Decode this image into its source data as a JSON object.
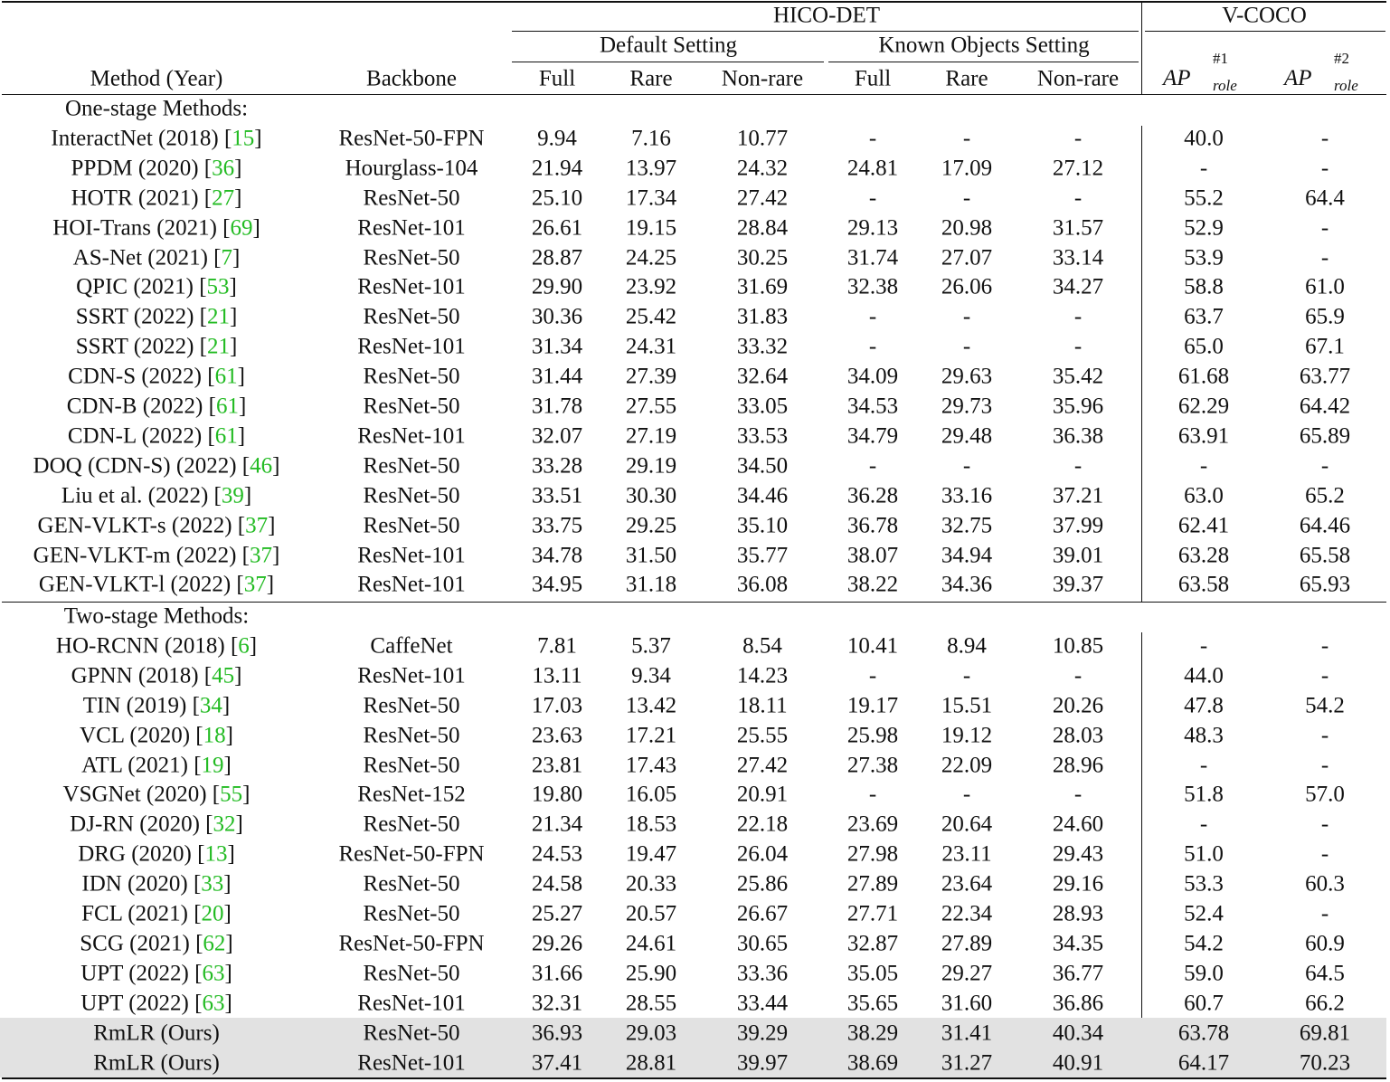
{
  "headers": {
    "hico_det": "HICO-DET",
    "v_coco": "V-COCO",
    "default_setting": "Default Setting",
    "known_objects_setting": "Known Objects Setting",
    "method": "Method (Year)",
    "backbone": "Backbone",
    "cols": [
      "Full",
      "Rare",
      "Non-rare",
      "Full",
      "Rare",
      "Non-rare"
    ],
    "ap_role_1": {
      "base": "AP",
      "sup": "#1",
      "sub": "role"
    },
    "ap_role_2": {
      "base": "AP",
      "sup": "#2",
      "sub": "role"
    }
  },
  "sections": [
    {
      "title": "One-stage Methods:",
      "rows": [
        {
          "method": "InteractNet (2018) [",
          "ref": "15",
          "backbone": "ResNet-50-FPN",
          "values": [
            "9.94",
            "7.16",
            "10.77",
            "-",
            "-",
            "-",
            "40.0",
            "-"
          ]
        },
        {
          "method": "PPDM (2020) [",
          "ref": "36",
          "backbone": "Hourglass-104",
          "values": [
            "21.94",
            "13.97",
            "24.32",
            "24.81",
            "17.09",
            "27.12",
            "-",
            "-"
          ]
        },
        {
          "method": "HOTR (2021) [",
          "ref": "27",
          "backbone": "ResNet-50",
          "values": [
            "25.10",
            "17.34",
            "27.42",
            "-",
            "-",
            "-",
            "55.2",
            "64.4"
          ]
        },
        {
          "method": "HOI-Trans (2021) [",
          "ref": "69",
          "backbone": "ResNet-101",
          "values": [
            "26.61",
            "19.15",
            "28.84",
            "29.13",
            "20.98",
            "31.57",
            "52.9",
            "-"
          ]
        },
        {
          "method": "AS-Net (2021) [",
          "ref": "7",
          "backbone": "ResNet-50",
          "values": [
            "28.87",
            "24.25",
            "30.25",
            "31.74",
            "27.07",
            "33.14",
            "53.9",
            "-"
          ]
        },
        {
          "method": "QPIC (2021) [",
          "ref": "53",
          "backbone": "ResNet-101",
          "values": [
            "29.90",
            "23.92",
            "31.69",
            "32.38",
            "26.06",
            "34.27",
            "58.8",
            "61.0"
          ]
        },
        {
          "method": "SSRT (2022) [",
          "ref": "21",
          "backbone": "ResNet-50",
          "values": [
            "30.36",
            "25.42",
            "31.83",
            "-",
            "-",
            "-",
            "63.7",
            "65.9"
          ]
        },
        {
          "method": "SSRT (2022) [",
          "ref": "21",
          "backbone": "ResNet-101",
          "values": [
            "31.34",
            "24.31",
            "33.32",
            "-",
            "-",
            "-",
            "65.0",
            "67.1"
          ]
        },
        {
          "method": "CDN-S (2022) [",
          "ref": "61",
          "backbone": "ResNet-50",
          "values": [
            "31.44",
            "27.39",
            "32.64",
            "34.09",
            "29.63",
            "35.42",
            "61.68",
            "63.77"
          ]
        },
        {
          "method": "CDN-B (2022) [",
          "ref": "61",
          "backbone": "ResNet-50",
          "values": [
            "31.78",
            "27.55",
            "33.05",
            "34.53",
            "29.73",
            "35.96",
            "62.29",
            "64.42"
          ]
        },
        {
          "method": "CDN-L (2022) [",
          "ref": "61",
          "backbone": "ResNet-101",
          "values": [
            "32.07",
            "27.19",
            "33.53",
            "34.79",
            "29.48",
            "36.38",
            "63.91",
            "65.89"
          ]
        },
        {
          "method": "DOQ (CDN-S) (2022) [",
          "ref": "46",
          "backbone": "ResNet-50",
          "values": [
            "33.28",
            "29.19",
            "34.50",
            "-",
            "-",
            "-",
            "-",
            "-"
          ]
        },
        {
          "method": "Liu et al. (2022) [",
          "ref": "39",
          "backbone": "ResNet-50",
          "values": [
            "33.51",
            "30.30",
            "34.46",
            "36.28",
            "33.16",
            "37.21",
            "63.0",
            "65.2"
          ]
        },
        {
          "method": "GEN-VLKT-s (2022) [",
          "ref": "37",
          "backbone": "ResNet-50",
          "values": [
            "33.75",
            "29.25",
            "35.10",
            "36.78",
            "32.75",
            "37.99",
            "62.41",
            "64.46"
          ]
        },
        {
          "method": "GEN-VLKT-m (2022) [",
          "ref": "37",
          "backbone": "ResNet-101",
          "values": [
            "34.78",
            "31.50",
            "35.77",
            "38.07",
            "34.94",
            "39.01",
            "63.28",
            "65.58"
          ]
        },
        {
          "method": "GEN-VLKT-l (2022) [",
          "ref": "37",
          "backbone": "ResNet-101",
          "values": [
            "34.95",
            "31.18",
            "36.08",
            "38.22",
            "34.36",
            "39.37",
            "63.58",
            "65.93"
          ]
        }
      ]
    },
    {
      "title": "Two-stage Methods:",
      "rows": [
        {
          "method": "HO-RCNN (2018) [",
          "ref": "6",
          "backbone": "CaffeNet",
          "values": [
            "7.81",
            "5.37",
            "8.54",
            "10.41",
            "8.94",
            "10.85",
            "-",
            "-"
          ]
        },
        {
          "method": "GPNN (2018) [",
          "ref": "45",
          "backbone": "ResNet-101",
          "values": [
            "13.11",
            "9.34",
            "14.23",
            "-",
            "-",
            "-",
            "44.0",
            "-"
          ]
        },
        {
          "method": "TIN (2019) [",
          "ref": "34",
          "backbone": "ResNet-50",
          "values": [
            "17.03",
            "13.42",
            "18.11",
            "19.17",
            "15.51",
            "20.26",
            "47.8",
            "54.2"
          ]
        },
        {
          "method": "VCL (2020) [",
          "ref": "18",
          "backbone": "ResNet-50",
          "values": [
            "23.63",
            "17.21",
            "25.55",
            "25.98",
            "19.12",
            "28.03",
            "48.3",
            "-"
          ]
        },
        {
          "method": "ATL (2021) [",
          "ref": "19",
          "backbone": "ResNet-50",
          "values": [
            "23.81",
            "17.43",
            "27.42",
            "27.38",
            "22.09",
            "28.96",
            "-",
            "-"
          ]
        },
        {
          "method": "VSGNet (2020) [",
          "ref": "55",
          "backbone": "ResNet-152",
          "values": [
            "19.80",
            "16.05",
            "20.91",
            "-",
            "-",
            "-",
            "51.8",
            "57.0"
          ]
        },
        {
          "method": "DJ-RN (2020) [",
          "ref": "32",
          "backbone": "ResNet-50",
          "values": [
            "21.34",
            "18.53",
            "22.18",
            "23.69",
            "20.64",
            "24.60",
            "-",
            "-"
          ]
        },
        {
          "method": "DRG (2020) [",
          "ref": "13",
          "backbone": "ResNet-50-FPN",
          "values": [
            "24.53",
            "19.47",
            "26.04",
            "27.98",
            "23.11",
            "29.43",
            "51.0",
            "-"
          ]
        },
        {
          "method": "IDN (2020) [",
          "ref": "33",
          "backbone": "ResNet-50",
          "values": [
            "24.58",
            "20.33",
            "25.86",
            "27.89",
            "23.64",
            "29.16",
            "53.3",
            "60.3"
          ]
        },
        {
          "method": "FCL (2021) [",
          "ref": "20",
          "backbone": "ResNet-50",
          "values": [
            "25.27",
            "20.57",
            "26.67",
            "27.71",
            "22.34",
            "28.93",
            "52.4",
            "-"
          ]
        },
        {
          "method": "SCG (2021) [",
          "ref": "62",
          "backbone": "ResNet-50-FPN",
          "values": [
            "29.26",
            "24.61",
            "30.65",
            "32.87",
            "27.89",
            "34.35",
            "54.2",
            "60.9"
          ]
        },
        {
          "method": "UPT (2022) [",
          "ref": "63",
          "backbone": "ResNet-50",
          "values": [
            "31.66",
            "25.90",
            "33.36",
            "35.05",
            "29.27",
            "36.77",
            "59.0",
            "64.5"
          ]
        },
        {
          "method": "UPT (2022) [",
          "ref": "63",
          "backbone": "ResNet-101",
          "values": [
            "32.31",
            "28.55",
            "33.44",
            "35.65",
            "31.60",
            "36.86",
            "60.7",
            "66.2"
          ]
        },
        {
          "method": "RmLR (Ours)",
          "ref": "",
          "backbone": "ResNet-50",
          "shaded": true,
          "values": [
            "36.93",
            "29.03",
            "39.29",
            "38.29",
            "31.41",
            "40.34",
            "63.78",
            "69.81"
          ]
        },
        {
          "method": "RmLR (Ours)",
          "ref": "",
          "backbone": "ResNet-101",
          "shaded": true,
          "values": [
            "37.41",
            "28.81",
            "39.97",
            "38.69",
            "31.27",
            "40.91",
            "64.17",
            "70.23"
          ]
        }
      ]
    }
  ],
  "colors": {
    "citation": "#22bb22",
    "shade": "#e2e2e2"
  }
}
